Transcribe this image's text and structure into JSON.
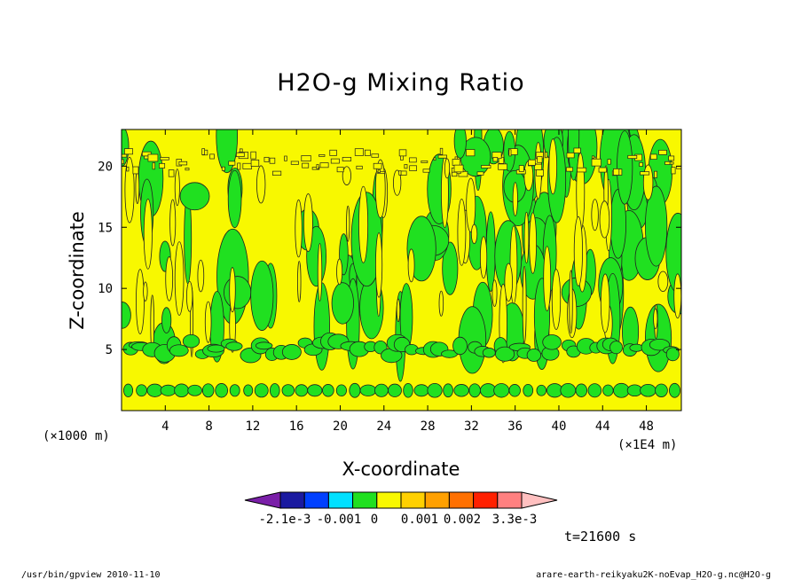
{
  "chart_data": {
    "type": "heatmap",
    "title": "H2O-g Mixing Ratio",
    "xlabel": "X-coordinate",
    "ylabel": "Z-coordinate",
    "x_unit_left": "(×1000 m)",
    "x_unit_right": "(×1E4 m)",
    "xticks": [
      "4",
      "8",
      "12",
      "16",
      "20",
      "24",
      "28",
      "32",
      "36",
      "40",
      "44",
      "48"
    ],
    "yticks": [
      "5",
      "10",
      "15",
      "20"
    ],
    "xlim": [
      0,
      51.2
    ],
    "ylim": [
      0,
      23
    ],
    "colorbar": {
      "labels": [
        "-2.1e-3",
        "-0.001",
        "0",
        "0.001",
        "0.002",
        "3.3e-3"
      ],
      "colors": [
        "#7a1fa8",
        "#1a1aa0",
        "#0040ff",
        "#00e0ff",
        "#20e020",
        "#f8f800",
        "#ffd000",
        "#ffa000",
        "#ff7000",
        "#ff2000",
        "#ff8080",
        "#ffc0c0"
      ]
    },
    "fill_colors": {
      "background": "#f8f800",
      "positive_band": "#20e020",
      "contour_line": "#202020"
    },
    "structure": {
      "green_bands_z": [
        [
          1.3,
          2.0
        ]
      ],
      "upper_green_region_z": [
        4.5,
        23
      ],
      "tropopause_noise_z": [
        19.5,
        21.5
      ]
    }
  },
  "time_label": "t=21600 s",
  "footer": {
    "left": "/usr/bin/gpview   2010-11-10",
    "right": "arare-earth-reikyaku2K-noEvap_H2O-g.nc@H2O-g"
  }
}
